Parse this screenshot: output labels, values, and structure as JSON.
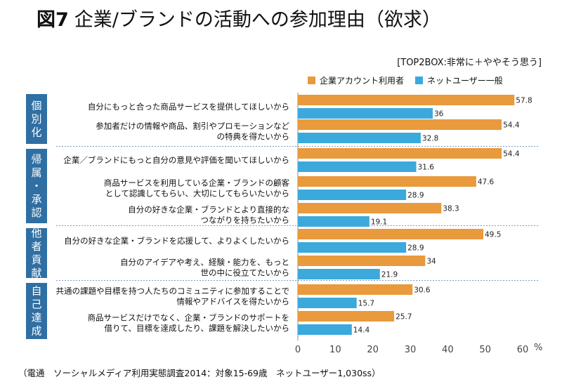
{
  "figure_label": "図7",
  "chart_data": {
    "type": "bar",
    "orientation": "horizontal",
    "title": "企業/ブランドの活動への参加理由（欲求）",
    "subtitle": "[TOP2BOX:非常に＋ややそう思う]",
    "unit": "%",
    "xlim": [
      0,
      60
    ],
    "xticks": [
      0,
      10,
      20,
      30,
      40,
      50,
      60
    ],
    "series": [
      {
        "name": "企業アカウント利用者",
        "color": "#E89A3C"
      },
      {
        "name": "ネットユーザー一般",
        "color": "#3BA9DC"
      }
    ],
    "groups": [
      {
        "name": "個別化",
        "items": [
          {
            "label": [
              "自分にもっと合った商品サービスを提供してほしいから"
            ],
            "values": [
              57.8,
              36
            ]
          },
          {
            "label": [
              "参加者だけの情報や商品、割引やプロモーションなど",
              "の特典を得たいから"
            ],
            "values": [
              54.4,
              32.8
            ]
          }
        ]
      },
      {
        "name": "帰属・承認",
        "items": [
          {
            "label": [
              "企業／ブランドにもっと自分の意見や評価を聞いてほしいから"
            ],
            "values": [
              54.4,
              31.6
            ]
          },
          {
            "label": [
              "商品サービスを利用している企業・ブランドの顧客",
              "として認識してもらい、大切にしてもらいたいから"
            ],
            "values": [
              47.6,
              28.9
            ]
          },
          {
            "label": [
              "自分の好きな企業・ブランドとより直接的な",
              "つながりを持ちたいから"
            ],
            "values": [
              38.3,
              19.1
            ]
          }
        ]
      },
      {
        "name": "他者貢献",
        "items": [
          {
            "label": [
              "自分の好きな企業・ブランドを応援して、よりよくしたいから"
            ],
            "values": [
              49.5,
              28.9
            ]
          },
          {
            "label": [
              "自分のアイデアや考え、経験・能力を、もっと",
              "世の中に役立てたいから"
            ],
            "values": [
              34,
              21.9
            ]
          }
        ]
      },
      {
        "name": "自己達成",
        "items": [
          {
            "label": [
              "共通の課題や目標を持つ人たちのコミュニティに参加することで",
              "情報やアドバイスを得たいから"
            ],
            "values": [
              30.6,
              15.7
            ]
          },
          {
            "label": [
              "商品サービスだけでなく、企業・ブランドのサポートを",
              "借りて、目標を達成したり、課題を解決したいから"
            ],
            "values": [
              25.7,
              14.4
            ]
          }
        ]
      }
    ]
  },
  "source": "（電通　ソーシャルメディア利用実態調査2014：対象15-69歳　ネットユーザー1,030ss）",
  "colors": {
    "group_box": "#2F6FA3",
    "divider": "#7A9CC0",
    "axis": "#888888"
  }
}
